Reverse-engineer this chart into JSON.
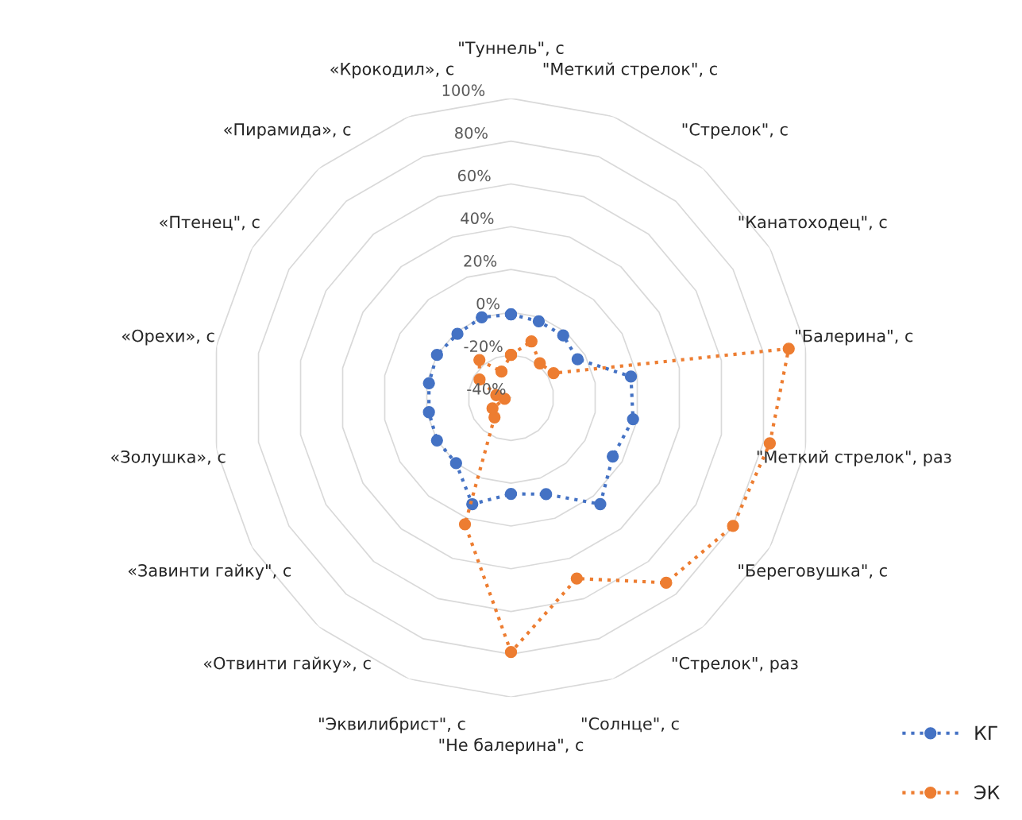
{
  "chart_data": {
    "type": "radar",
    "categories": [
      "\"Туннель\", с",
      "\"Меткий стрелок\", с",
      "\"Стрелок\", с",
      "\"Канатоходец\", с",
      "\"Балерина\", с",
      "\"Меткий стрелок\", раз",
      "\"Береговушка\", с",
      "\"Стрелок\", раз",
      "\"Солнце\", с",
      "\"Не балерина\", с",
      "\"Эквилибрист\", с",
      "«Отвинти гайку», с",
      "«Завинти гайку\", с",
      "«Золушка», с",
      "«Орехи», с",
      "«Птенец\", с",
      "«Пирамида», с",
      "«Крокодил», с"
    ],
    "series": [
      {
        "name": "КГ",
        "color": "#4472c4",
        "values": [
          -1,
          -2,
          -2,
          -4,
          17,
          18,
          15,
          25,
          8,
          5,
          13,
          0,
          0,
          -1,
          -1,
          0,
          -1,
          0
        ]
      },
      {
        "name": "ЭК",
        "color": "#ed7d31",
        "values": [
          -20,
          -12,
          -19,
          -17,
          92,
          83,
          80,
          73,
          50,
          79,
          23,
          -28,
          -30,
          -37,
          -33,
          -23,
          -17,
          -27
        ]
      }
    ],
    "ylim": [
      -40,
      100
    ],
    "yticks": [
      {
        "value": -40,
        "label": "-40%"
      },
      {
        "value": -20,
        "label": "-20%"
      },
      {
        "value": 0,
        "label": "0%"
      },
      {
        "value": 20,
        "label": "20%"
      },
      {
        "value": 40,
        "label": "40%"
      },
      {
        "value": 60,
        "label": "60%"
      },
      {
        "value": 80,
        "label": "80%"
      },
      {
        "value": 100,
        "label": "100%"
      }
    ],
    "grid": true,
    "legend": "bottom right",
    "marker": "circle",
    "line_style": "dotted"
  }
}
